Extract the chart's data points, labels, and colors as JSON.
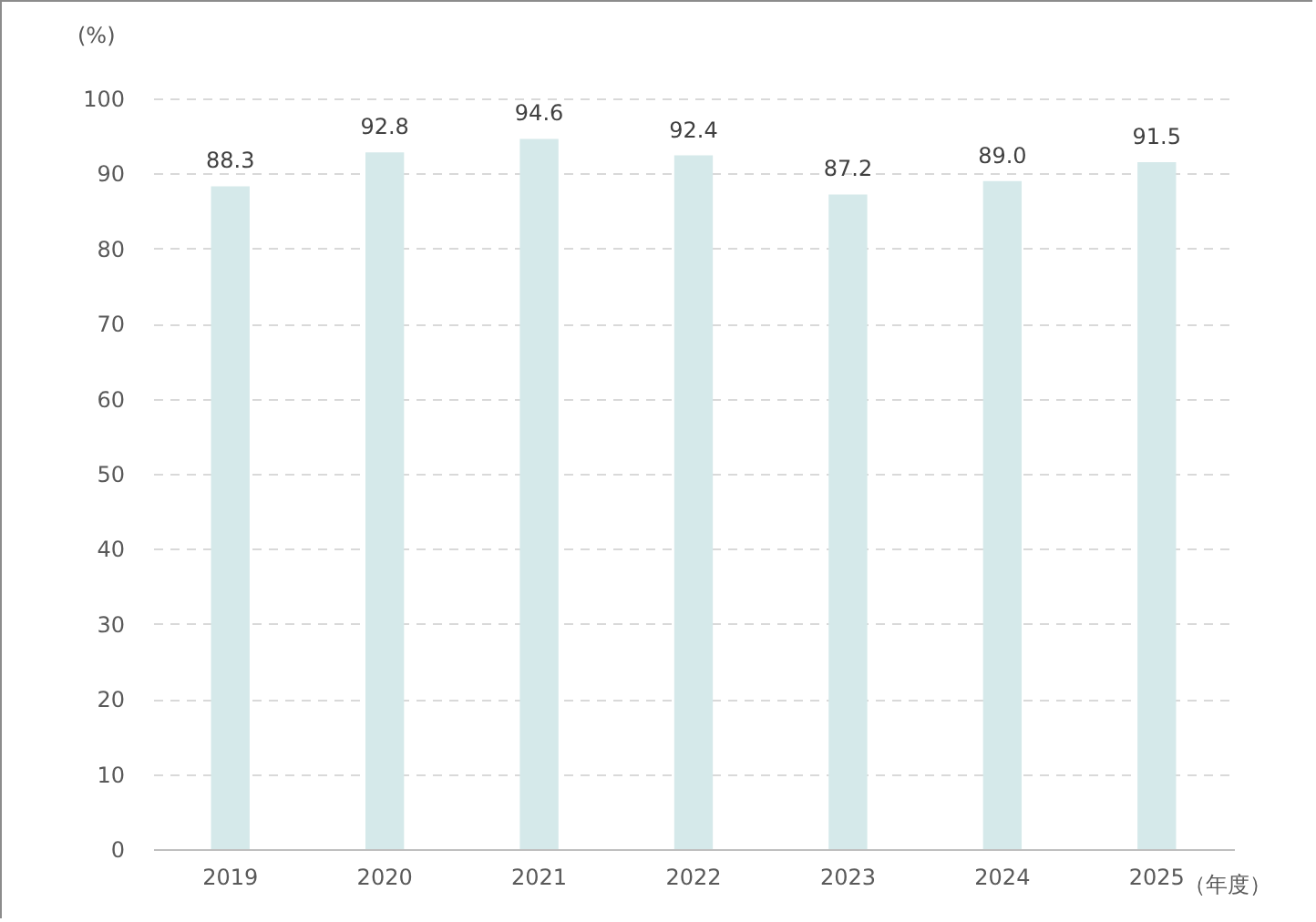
{
  "chart_data": {
    "type": "bar",
    "xlabel": "（年度）",
    "ylabel": "(%)",
    "categories": [
      "2019",
      "2020",
      "2021",
      "2022",
      "2023",
      "2024",
      "2025"
    ],
    "values": [
      88.3,
      92.8,
      94.6,
      92.4,
      87.2,
      89.0,
      91.5
    ],
    "color": "#d5e9ea",
    "value_labels": [
      "88.3",
      "92.8",
      "94.6",
      "92.4",
      "87.2",
      "89.0",
      "91.5"
    ],
    "ylim": [
      0,
      100
    ],
    "yticks": [
      0,
      10,
      20,
      30,
      40,
      50,
      60,
      70,
      80,
      90,
      100
    ],
    "grid": "y"
  }
}
